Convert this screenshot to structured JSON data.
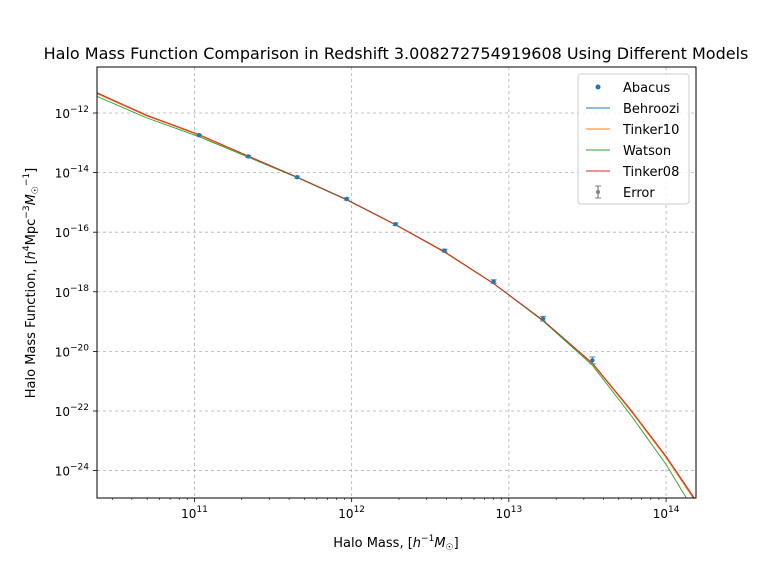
{
  "chart_data": {
    "type": "line",
    "title": "Halo Mass Function Comparison in Redshift 3.008272754919608 Using Different Models",
    "xlabel": {
      "main": "Halo Mass, [",
      "sym1": "h",
      "sup1": "−1",
      "sym2": "M",
      "sub2": "☉",
      "close": "]"
    },
    "ylabel": {
      "main": "Halo Mass Function, [",
      "sym1": "h",
      "sup1": "4",
      "mid": "Mpc",
      "sup2": "−3",
      "sym2": "M",
      "sub2": "☉",
      "sup3": "−1",
      "close": "]"
    },
    "x_scale": "log",
    "y_scale": "log",
    "xlim": [
      24000000000.0,
      155000000000000.0
    ],
    "ylim": [
      1.2e-25,
      3.5e-11
    ],
    "grid": true,
    "legend_position": "top-right",
    "x_ticks": [
      {
        "value": 100000000000.0,
        "base": "10",
        "exp": "11"
      },
      {
        "value": 1000000000000.0,
        "base": "10",
        "exp": "12"
      },
      {
        "value": 10000000000000.0,
        "base": "10",
        "exp": "13"
      },
      {
        "value": 100000000000000.0,
        "base": "10",
        "exp": "14"
      }
    ],
    "y_ticks": [
      {
        "value": 1e-12,
        "base": "10",
        "exp": "−12"
      },
      {
        "value": 1e-14,
        "base": "10",
        "exp": "−14"
      },
      {
        "value": 1e-16,
        "base": "10",
        "exp": "−16"
      },
      {
        "value": 1e-18,
        "base": "10",
        "exp": "−18"
      },
      {
        "value": 1e-20,
        "base": "10",
        "exp": "−20"
      },
      {
        "value": 1e-22,
        "base": "10",
        "exp": "−22"
      },
      {
        "value": 1e-24,
        "base": "10",
        "exp": "−24"
      }
    ],
    "series": [
      {
        "name": "Behroozi",
        "kind": "line",
        "color": "#1f77b4",
        "x": [
          24000000000.0,
          50000000000.0,
          107000000000.0,
          220000000000.0,
          450000000000.0,
          930000000000.0,
          1900000000000.0,
          3900000000000.0,
          8000000000000.0,
          16500000000000.0,
          34000000000000.0,
          60000000000000.0,
          100000000000000.0,
          155000000000000.0
        ],
        "y": [
          4.5e-12,
          8e-13,
          1.8e-13,
          3.5e-14,
          7e-15,
          1.25e-15,
          1.8e-16,
          2.2e-17,
          1.9e-18,
          1.1e-19,
          4e-21,
          1e-22,
          2.8e-24,
          9e-26
        ]
      },
      {
        "name": "Tinker10",
        "kind": "line",
        "color": "#ff7f0e",
        "x": [
          24000000000.0,
          50000000000.0,
          107000000000.0,
          220000000000.0,
          450000000000.0,
          930000000000.0,
          1900000000000.0,
          3900000000000.0,
          8000000000000.0,
          16500000000000.0,
          34000000000000.0,
          60000000000000.0,
          100000000000000.0,
          155000000000000.0
        ],
        "y": [
          4.4e-12,
          7.9e-13,
          1.8e-13,
          3.4e-14,
          6.9e-15,
          1.2e-15,
          1.75e-16,
          2.1e-17,
          1.85e-18,
          1.05e-19,
          3.8e-21,
          9.5e-23,
          2.7e-24,
          8.5e-26
        ]
      },
      {
        "name": "Watson",
        "kind": "line",
        "color": "#2ca02c",
        "x": [
          24000000000.0,
          50000000000.0,
          107000000000.0,
          220000000000.0,
          450000000000.0,
          930000000000.0,
          1900000000000.0,
          3900000000000.0,
          8000000000000.0,
          16500000000000.0,
          34000000000000.0,
          60000000000000.0,
          100000000000000.0,
          155000000000000.0
        ],
        "y": [
          3.6e-12,
          6.8e-13,
          1.6e-13,
          3.3e-14,
          6.8e-15,
          1.2e-15,
          1.8e-16,
          2.2e-17,
          1.9e-18,
          1.05e-19,
          3.4e-21,
          7e-23,
          1.6e-24,
          3.5e-26
        ]
      },
      {
        "name": "Tinker08",
        "kind": "line",
        "color": "#d62728",
        "x": [
          24000000000.0,
          50000000000.0,
          107000000000.0,
          220000000000.0,
          450000000000.0,
          930000000000.0,
          1900000000000.0,
          3900000000000.0,
          8000000000000.0,
          16500000000000.0,
          34000000000000.0,
          60000000000000.0,
          100000000000000.0,
          155000000000000.0
        ],
        "y": [
          4.8e-12,
          8.4e-13,
          1.9e-13,
          3.6e-14,
          7.1e-15,
          1.25e-15,
          1.8e-16,
          2.2e-17,
          1.9e-18,
          1.1e-19,
          4e-21,
          1.05e-22,
          3e-24,
          1e-25
        ]
      },
      {
        "name": "Abacus",
        "kind": "scatter",
        "color": "#1f77b4",
        "x": [
          107000000000.0,
          220000000000.0,
          450000000000.0,
          930000000000.0,
          1900000000000.0,
          3900000000000.0,
          8000000000000.0,
          16500000000000.0,
          34000000000000.0
        ],
        "y": [
          1.8e-13,
          3.5e-14,
          7e-15,
          1.3e-15,
          1.85e-16,
          2.4e-17,
          2.2e-18,
          1.25e-19,
          5e-21
        ]
      },
      {
        "name": "Error",
        "kind": "errorbar",
        "color": "#808080",
        "x": [
          107000000000.0,
          220000000000.0,
          450000000000.0,
          930000000000.0,
          1900000000000.0,
          3900000000000.0,
          8000000000000.0,
          16500000000000.0,
          34000000000000.0
        ],
        "y": [
          1.8e-13,
          3.5e-14,
          7e-15,
          1.3e-15,
          1.85e-16,
          2.4e-17,
          2.2e-18,
          1.25e-19,
          5e-21
        ],
        "yerr_factor": [
          1.08,
          1.08,
          1.08,
          1.1,
          1.1,
          1.12,
          1.15,
          1.2,
          1.3
        ]
      }
    ],
    "legend_order": [
      "Abacus",
      "Behroozi",
      "Tinker10",
      "Watson",
      "Tinker08",
      "Error"
    ]
  }
}
